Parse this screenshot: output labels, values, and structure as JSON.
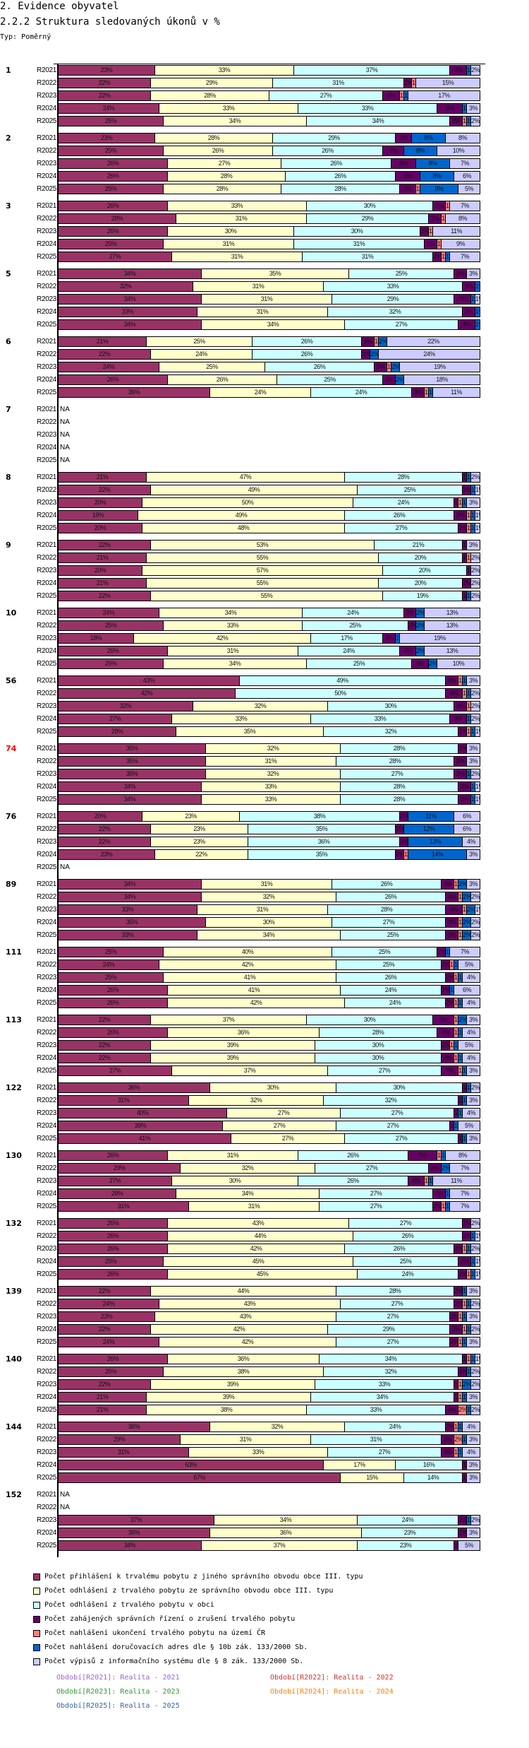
{
  "header": {
    "section_title": "2. Evidence obyvatel",
    "chart_title": "2.2.2 Struktura sledovaných úkonů v %",
    "type_label": "Typ: Poměrný"
  },
  "chart_data": {
    "type": "bar",
    "orientation": "horizontal",
    "stacked": "percent",
    "title": "2.2.2 Struktura sledovaných úkonů v %",
    "xlabel": "",
    "ylabel": "",
    "xlim": [
      0,
      100
    ],
    "grid": false,
    "legend_position": "bottom",
    "series_names": [
      "Počet přihlášení k trvalému pobytu z jiného správního obvodu obce III. typu",
      "Počet odhlášení z trvalého pobytu ze správního obvodu obce III. typu",
      "Počet odhlášení z trvalého pobytu v obci",
      "Počet zahájených správních řízení o zrušení trvalého pobytu",
      "Počet nahlášení ukončení trvalého pobytu na území ČR",
      "Počet nahlášení doručovacích adres dle § 10b zák. 133/2000 Sb.",
      "Počet výpisů z informačního systému dle § 8 zák. 133/2000 Sb."
    ],
    "series_colors": [
      "#993366",
      "#ffffcc",
      "#ccffff",
      "#660066",
      "#ff8080",
      "#0066cc",
      "#ccccff"
    ],
    "periods": [
      "R2021",
      "R2022",
      "R2023",
      "R2024",
      "R2025"
    ],
    "groups": [
      {
        "id": "1",
        "highlight": false,
        "rows": [
          [
            23,
            33,
            37,
            4,
            0,
            1,
            2
          ],
          [
            22,
            29,
            31,
            2,
            1,
            0,
            15
          ],
          [
            22,
            28,
            27,
            4,
            1,
            1,
            17
          ],
          [
            24,
            33,
            33,
            6,
            0,
            1,
            3
          ],
          [
            25,
            34,
            34,
            3,
            1,
            1,
            2
          ]
        ]
      },
      {
        "id": "2",
        "highlight": false,
        "rows": [
          [
            23,
            28,
            29,
            4,
            0,
            8,
            8
          ],
          [
            25,
            26,
            26,
            5,
            0,
            8,
            10
          ],
          [
            26,
            27,
            26,
            6,
            0,
            8,
            7
          ],
          [
            26,
            28,
            26,
            6,
            0,
            8,
            6
          ],
          [
            25,
            28,
            28,
            4,
            1,
            9,
            5
          ]
        ]
      },
      {
        "id": "3",
        "highlight": false,
        "rows": [
          [
            26,
            33,
            30,
            3,
            1,
            0,
            7
          ],
          [
            28,
            31,
            29,
            3,
            1,
            0,
            8
          ],
          [
            26,
            30,
            30,
            2,
            1,
            0,
            11
          ],
          [
            25,
            31,
            31,
            3,
            1,
            0,
            9
          ],
          [
            27,
            31,
            31,
            2,
            1,
            1,
            7
          ]
        ]
      },
      {
        "id": "5",
        "highlight": false,
        "rows": [
          [
            34,
            35,
            25,
            3,
            0,
            0,
            3
          ],
          [
            32,
            31,
            33,
            3,
            0,
            1,
            0
          ],
          [
            34,
            31,
            29,
            4,
            0,
            1,
            1
          ],
          [
            33,
            31,
            32,
            3,
            0,
            1,
            0
          ],
          [
            34,
            34,
            27,
            4,
            0,
            1,
            0
          ]
        ]
      },
      {
        "id": "6",
        "highlight": false,
        "rows": [
          [
            21,
            25,
            26,
            3,
            1,
            2,
            22
          ],
          [
            22,
            24,
            26,
            2,
            0,
            2,
            24
          ],
          [
            24,
            25,
            26,
            3,
            1,
            2,
            19
          ],
          [
            26,
            26,
            25,
            3,
            0,
            2,
            18
          ],
          [
            36,
            24,
            24,
            3,
            1,
            1,
            11
          ]
        ]
      },
      {
        "id": "7",
        "highlight": false,
        "rows": [
          null,
          null,
          null,
          null,
          null
        ]
      },
      {
        "id": "8",
        "highlight": false,
        "rows": [
          [
            21,
            47,
            28,
            1,
            0,
            1,
            2
          ],
          [
            22,
            49,
            25,
            2,
            0,
            1,
            1
          ],
          [
            20,
            50,
            24,
            1,
            1,
            1,
            3
          ],
          [
            19,
            49,
            26,
            3,
            1,
            1,
            1
          ],
          [
            20,
            48,
            27,
            2,
            1,
            1,
            1
          ]
        ]
      },
      {
        "id": "9",
        "highlight": false,
        "rows": [
          [
            22,
            53,
            21,
            1,
            0,
            0,
            3
          ],
          [
            21,
            55,
            20,
            1,
            1,
            0,
            2
          ],
          [
            20,
            57,
            20,
            1,
            0,
            0,
            2
          ],
          [
            21,
            55,
            20,
            2,
            0,
            0,
            2
          ],
          [
            22,
            55,
            19,
            1,
            0,
            1,
            2
          ]
        ]
      },
      {
        "id": "10",
        "highlight": false,
        "rows": [
          [
            24,
            34,
            24,
            3,
            0,
            2,
            13
          ],
          [
            25,
            33,
            25,
            2,
            0,
            2,
            13
          ],
          [
            18,
            42,
            17,
            3,
            0,
            1,
            19
          ],
          [
            26,
            31,
            24,
            4,
            0,
            2,
            13
          ],
          [
            25,
            34,
            25,
            4,
            0,
            2,
            10
          ]
        ]
      },
      {
        "id": "56",
        "highlight": false,
        "rows": [
          [
            43,
            0,
            49,
            3,
            1,
            1,
            3
          ],
          [
            42,
            0,
            50,
            4,
            1,
            1,
            2
          ],
          [
            32,
            32,
            30,
            3,
            1,
            0,
            2
          ],
          [
            27,
            33,
            33,
            4,
            0,
            1,
            2
          ],
          [
            28,
            35,
            32,
            2,
            1,
            1,
            1
          ]
        ]
      },
      {
        "id": "74",
        "highlight": true,
        "rows": [
          [
            35,
            32,
            28,
            2,
            0,
            0,
            3
          ],
          [
            35,
            31,
            28,
            3,
            0,
            0,
            3
          ],
          [
            35,
            32,
            27,
            3,
            0,
            1,
            2
          ],
          [
            34,
            33,
            28,
            3,
            0,
            1,
            1
          ],
          [
            34,
            33,
            28,
            3,
            0,
            1,
            1
          ]
        ]
      },
      {
        "id": "76",
        "highlight": false,
        "rows": [
          [
            20,
            23,
            38,
            2,
            0,
            11,
            6
          ],
          [
            22,
            23,
            35,
            2,
            0,
            12,
            6
          ],
          [
            22,
            23,
            36,
            2,
            0,
            13,
            4
          ],
          [
            23,
            22,
            35,
            2,
            1,
            14,
            3
          ],
          null
        ]
      },
      {
        "id": "89",
        "highlight": false,
        "rows": [
          [
            34,
            31,
            26,
            3,
            1,
            2,
            3
          ],
          [
            34,
            32,
            26,
            3,
            1,
            2,
            2
          ],
          [
            33,
            31,
            28,
            4,
            1,
            2,
            1
          ],
          [
            35,
            30,
            27,
            3,
            1,
            2,
            2
          ],
          [
            33,
            34,
            25,
            3,
            1,
            2,
            2
          ]
        ]
      },
      {
        "id": "111",
        "highlight": false,
        "rows": [
          [
            25,
            40,
            25,
            2,
            0,
            1,
            7
          ],
          [
            24,
            42,
            25,
            2,
            1,
            1,
            5
          ],
          [
            25,
            41,
            26,
            2,
            1,
            1,
            4
          ],
          [
            26,
            41,
            24,
            2,
            0,
            1,
            6
          ],
          [
            26,
            42,
            24,
            2,
            1,
            1,
            4
          ]
        ]
      },
      {
        "id": "113",
        "highlight": false,
        "rows": [
          [
            22,
            37,
            30,
            5,
            1,
            2,
            3
          ],
          [
            26,
            36,
            28,
            4,
            1,
            1,
            4
          ],
          [
            22,
            39,
            30,
            2,
            1,
            1,
            5
          ],
          [
            22,
            39,
            30,
            3,
            1,
            1,
            4
          ],
          [
            27,
            37,
            27,
            4,
            1,
            1,
            3
          ]
        ]
      },
      {
        "id": "122",
        "highlight": false,
        "rows": [
          [
            36,
            30,
            30,
            1,
            0,
            1,
            2
          ],
          [
            31,
            32,
            32,
            1,
            0,
            1,
            3
          ],
          [
            40,
            27,
            27,
            1,
            0,
            1,
            4
          ],
          [
            39,
            27,
            27,
            1,
            0,
            1,
            5
          ],
          [
            41,
            27,
            27,
            1,
            0,
            1,
            3
          ]
        ]
      },
      {
        "id": "130",
        "highlight": false,
        "rows": [
          [
            26,
            31,
            26,
            7,
            1,
            1,
            8
          ],
          [
            29,
            32,
            27,
            3,
            0,
            2,
            7
          ],
          [
            27,
            30,
            26,
            4,
            1,
            1,
            11
          ],
          [
            28,
            34,
            27,
            3,
            0,
            1,
            7
          ],
          [
            31,
            31,
            27,
            2,
            1,
            1,
            7
          ]
        ]
      },
      {
        "id": "132",
        "highlight": false,
        "rows": [
          [
            26,
            43,
            27,
            2,
            0,
            0,
            2
          ],
          [
            26,
            44,
            26,
            2,
            0,
            1,
            1
          ],
          [
            26,
            42,
            26,
            2,
            1,
            1,
            2
          ],
          [
            25,
            45,
            25,
            3,
            0,
            1,
            1
          ],
          [
            26,
            45,
            24,
            2,
            1,
            1,
            1
          ]
        ]
      },
      {
        "id": "139",
        "highlight": false,
        "rows": [
          [
            22,
            44,
            28,
            2,
            0,
            1,
            3
          ],
          [
            24,
            43,
            27,
            2,
            1,
            1,
            2
          ],
          [
            23,
            43,
            27,
            2,
            1,
            1,
            3
          ],
          [
            22,
            42,
            29,
            3,
            1,
            1,
            2
          ],
          [
            24,
            42,
            27,
            2,
            1,
            1,
            3
          ]
        ]
      },
      {
        "id": "140",
        "highlight": false,
        "rows": [
          [
            26,
            36,
            34,
            1,
            1,
            1,
            1
          ],
          [
            25,
            38,
            32,
            2,
            0,
            1,
            2
          ],
          [
            22,
            39,
            33,
            1,
            1,
            2,
            2
          ],
          [
            21,
            39,
            34,
            1,
            1,
            1,
            3
          ],
          [
            21,
            38,
            33,
            3,
            2,
            1,
            2
          ]
        ]
      },
      {
        "id": "144",
        "highlight": false,
        "rows": [
          [
            36,
            32,
            24,
            2,
            1,
            1,
            4
          ],
          [
            29,
            31,
            31,
            3,
            2,
            1,
            3
          ],
          [
            31,
            33,
            27,
            3,
            1,
            1,
            4
          ],
          [
            63,
            17,
            16,
            1,
            0,
            0,
            3
          ],
          [
            67,
            15,
            14,
            1,
            0,
            0,
            3
          ]
        ]
      },
      {
        "id": "152",
        "highlight": false,
        "rows": [
          null,
          null,
          [
            37,
            34,
            24,
            2,
            0,
            1,
            2
          ],
          [
            36,
            36,
            23,
            2,
            0,
            0,
            3
          ],
          [
            34,
            37,
            23,
            1,
            0,
            0,
            5
          ]
        ]
      }
    ],
    "na_label": "NA"
  },
  "period_legend": [
    {
      "text": "Období[R2021]: Realita - 2021",
      "color": "#9966cc"
    },
    {
      "text": "Období[R2022]: Realita - 2022",
      "color": "#cc3333"
    },
    {
      "text": "Období[R2023]: Realita - 2023",
      "color": "#339933"
    },
    {
      "text": "Období[R2024]: Realita - 2024",
      "color": "#ff8000"
    },
    {
      "text": "Období[R2025]: Realita - 2025",
      "color": "#3366aa"
    }
  ],
  "highlight_color": "#ff0000"
}
